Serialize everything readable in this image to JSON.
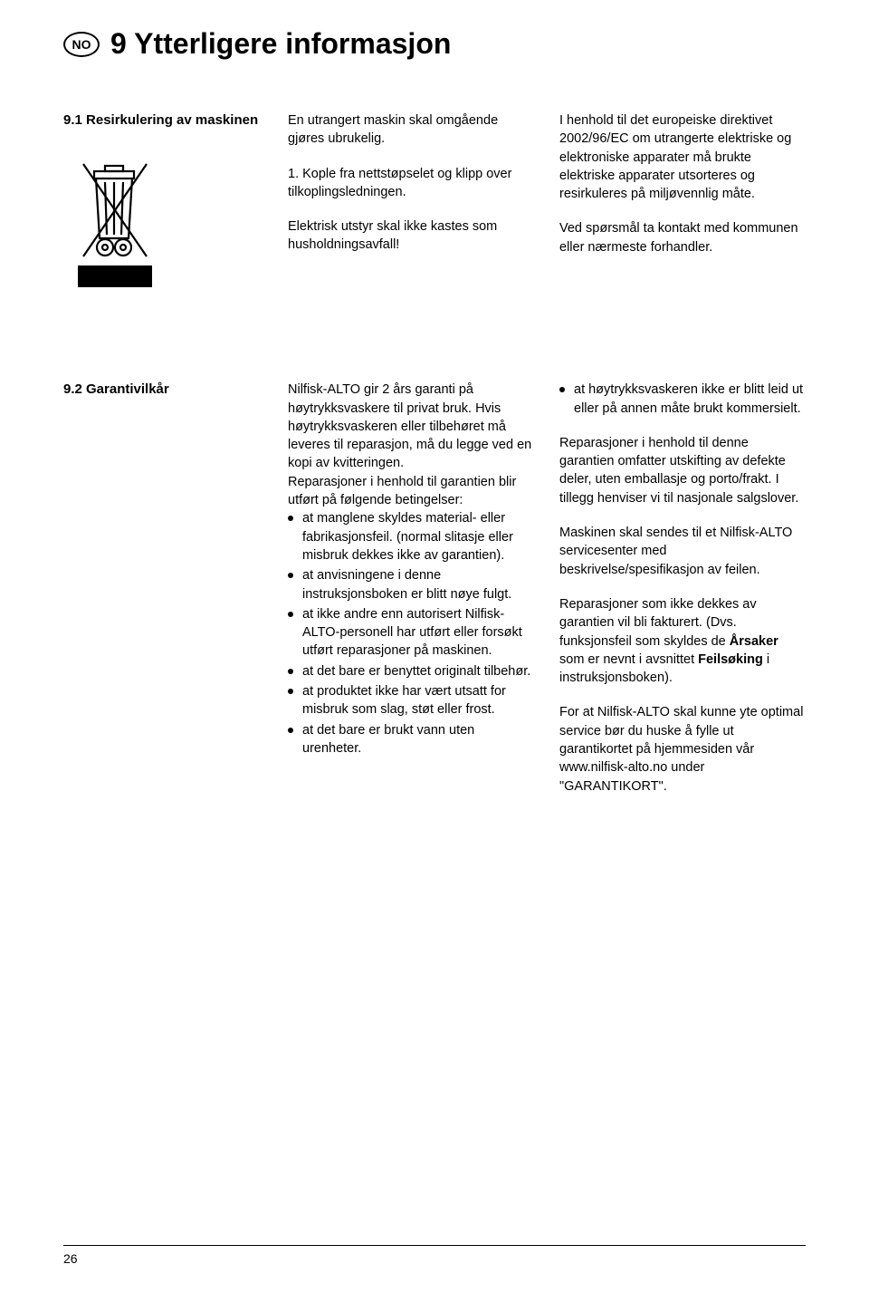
{
  "header": {
    "lang_badge": "NO",
    "title": "9  Ytterligere informasjon"
  },
  "section_9_1": {
    "heading": "9.1 Resirkulering av maskinen",
    "col_mid_p1": "En utrangert maskin skal omgående gjøres ubrukelig.",
    "col_mid_p2": "1. Kople fra nettstøpselet og klipp over tilkoplingsledningen.",
    "col_mid_p3": "Elektrisk utstyr skal ikke kastes som husholdningsavfall!",
    "col_right_p1": "I henhold til det europeiske direktivet 2002/96/EC om utrangerte elektriske og elektroniske apparater må brukte elektriske apparater utsorteres og resirkuleres på miljøvennlig måte.",
    "col_right_p2": "Ved spørsmål ta kontakt med kommunen eller nærmeste forhandler."
  },
  "section_9_2": {
    "heading": "9.2 Garantivilkår",
    "col_mid_p1": "Nilfisk-ALTO gir 2 års garanti på høytrykksvaskere til privat bruk. Hvis høytrykksvaskeren eller tilbehøret må leveres til reparasjon, må du legge ved en kopi av kvitteringen.",
    "col_mid_p2": "Reparasjoner i henhold til garantien blir utført på følgende betingelser:",
    "bullets_mid": [
      "at manglene skyldes material- eller fabrikasjonsfeil. (normal slitasje eller misbruk dekkes ikke av garantien).",
      "at anvisningene i denne instruksjonsboken er blitt nøye fulgt.",
      "at ikke andre enn autorisert Nilfisk-ALTO-personell har utført eller forsøkt utført reparasjoner på maskinen.",
      "at det bare er benyttet originalt tilbehør.",
      "at produktet ikke har vært utsatt for misbruk som slag, støt eller frost.",
      "at det bare er brukt vann uten urenheter."
    ],
    "bullets_right_first": [
      "at høytrykksvaskeren ikke er blitt leid ut eller på annen måte brukt kommersielt."
    ],
    "col_right_p1": "Reparasjoner i henhold til denne garantien omfatter utskifting av defekte deler, uten emballasje og porto/frakt. I tillegg henviser vi til nasjonale salgslover.",
    "col_right_p2": "Maskinen skal sendes til et Nilfisk-ALTO servicesenter med beskrivelse/spesifikasjon av feilen.",
    "col_right_p3_a": "Reparasjoner som ikke dekkes av garantien vil bli fakturert. (Dvs. funksjonsfeil som skyldes de ",
    "col_right_p3_b": "Årsaker",
    "col_right_p3_c": " som er nevnt i avsnittet ",
    "col_right_p3_d": "Feilsøking",
    "col_right_p3_e": " i instruksjonsboken).",
    "col_right_p4": "For at Nilfisk-ALTO skal kunne yte optimal service bør du huske å fylle ut garantikortet på hjemmesiden vår www.nilfisk-alto.no under \"GARANTIKORT\"."
  },
  "footer": {
    "page_number": "26"
  },
  "icon": {
    "stroke": "#000000",
    "fill_black_bar": "#000000",
    "width": 110,
    "height": 150
  }
}
